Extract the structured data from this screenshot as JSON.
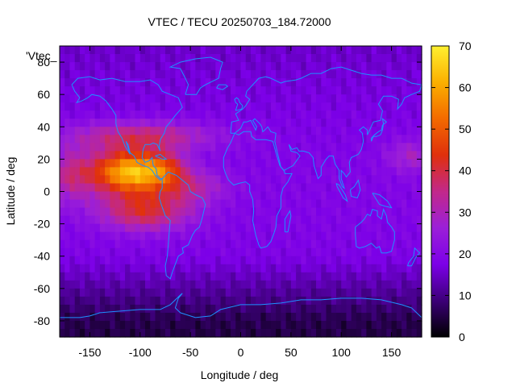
{
  "chart_data": {
    "type": "heatmap",
    "title": "VTEC / TECU 20250703_184.72000",
    "xlabel": "Longitude / deg",
    "ylabel": "Latitude / deg",
    "series_key": "'Vtec_",
    "xlim": [
      -180,
      180
    ],
    "ylim": [
      -90,
      90
    ],
    "x_ticks": [
      -150,
      -100,
      -50,
      0,
      50,
      100,
      150
    ],
    "y_ticks": [
      -80,
      -60,
      -40,
      -20,
      0,
      20,
      40,
      60,
      80
    ],
    "colorbar": {
      "range": [
        0,
        70
      ],
      "ticks": [
        0,
        10,
        20,
        30,
        40,
        50,
        60,
        70
      ],
      "palette": [
        "#000000",
        "#3c0078",
        "#7c00e8",
        "#9b1fd8",
        "#c2288a",
        "#e0300c",
        "#f36a00",
        "#fbb000",
        "#fff030"
      ]
    },
    "grid_spacing_deg": 5,
    "anomaly_peaks": [
      {
        "lon": -110,
        "lat": 12,
        "amp": 44,
        "sx": 38,
        "sy": 13
      },
      {
        "lon": -75,
        "lat": 14,
        "amp": 14,
        "sx": 22,
        "sy": 10
      },
      {
        "lon": -95,
        "lat": -12,
        "amp": 22,
        "sx": 45,
        "sy": 12
      },
      {
        "lon": -50,
        "lat": 3,
        "amp": 12,
        "sx": 35,
        "sy": 10
      },
      {
        "lon": -100,
        "lat": 34,
        "amp": 18,
        "sx": 70,
        "sy": 9
      },
      {
        "lon": -170,
        "lat": 10,
        "amp": 14,
        "sx": 25,
        "sy": 16
      },
      {
        "lon": 170,
        "lat": 22,
        "amp": 10,
        "sx": 25,
        "sy": 10
      }
    ],
    "background_tec": 15,
    "polar_south_tec": 5,
    "coastline_color": "#1e90ff"
  }
}
